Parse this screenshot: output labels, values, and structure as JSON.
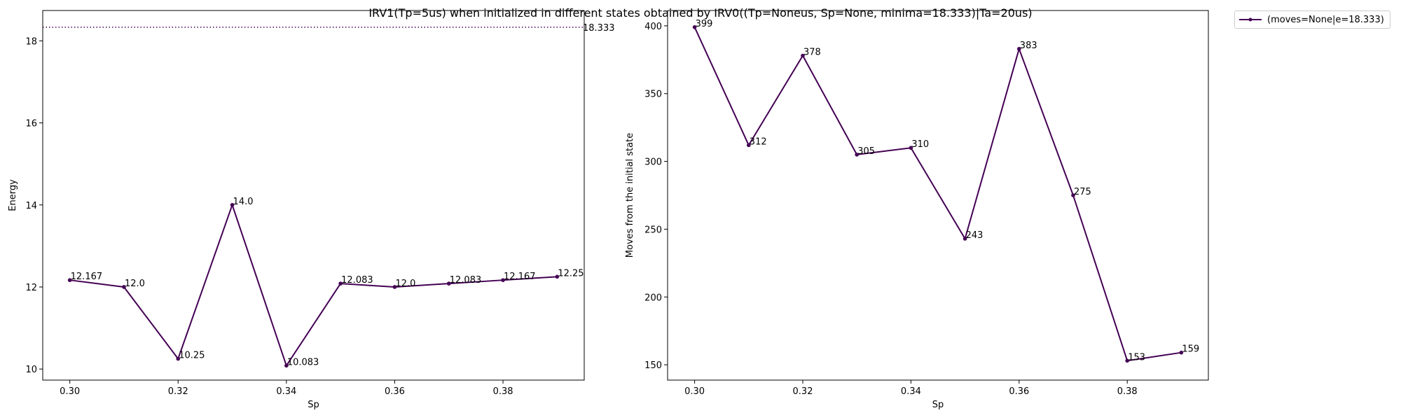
{
  "figure": {
    "title": "IRV1(Tp=5us) when initialized in different states obtained by IRV0((Tp=Noneus, Sp=None, minima=18.333)|Ta=20us)",
    "line_color": "#440154"
  },
  "legend": {
    "placement": "upper right, outside plot",
    "label": "(moves=None|e=18.333)"
  },
  "chart_data": [
    {
      "type": "line",
      "xlabel": "Sp",
      "ylabel": "Energy",
      "xlim": [
        0.295,
        0.395
      ],
      "ylim": [
        9.73,
        18.74
      ],
      "xticks": [
        0.3,
        0.32,
        0.34,
        0.36,
        0.38
      ],
      "xtick_labels": [
        "0.30",
        "0.32",
        "0.34",
        "0.36",
        "0.38"
      ],
      "yticks": [
        10,
        12,
        14,
        16,
        18
      ],
      "ytick_labels": [
        "10",
        "12",
        "14",
        "16",
        "18"
      ],
      "grid": false,
      "x": [
        0.3,
        0.31,
        0.32,
        0.33,
        0.34,
        0.35,
        0.36,
        0.37,
        0.38,
        0.39
      ],
      "values": [
        12.167,
        12.0,
        10.25,
        14.0,
        10.083,
        12.083,
        12.0,
        12.083,
        12.167,
        12.25
      ],
      "point_labels": [
        "12.167",
        "12.0",
        "10.25",
        "14.0",
        "10.083",
        "12.083",
        "12.0",
        "12.083",
        "12.167",
        "12.25"
      ],
      "reference_line": {
        "value": 18.333,
        "label": "18.333",
        "style": "dotted"
      }
    },
    {
      "type": "line",
      "xlabel": "Sp",
      "ylabel": "Moves from the initial state",
      "xlim": [
        0.295,
        0.395
      ],
      "ylim": [
        138.7,
        411.3
      ],
      "xticks": [
        0.3,
        0.32,
        0.34,
        0.36,
        0.38
      ],
      "xtick_labels": [
        "0.30",
        "0.32",
        "0.34",
        "0.36",
        "0.38"
      ],
      "yticks": [
        150,
        200,
        250,
        300,
        350,
        400
      ],
      "ytick_labels": [
        "150",
        "200",
        "250",
        "300",
        "350",
        "400"
      ],
      "grid": false,
      "x": [
        0.3,
        0.31,
        0.32,
        0.33,
        0.34,
        0.35,
        0.36,
        0.37,
        0.38,
        0.39
      ],
      "values": [
        399,
        312,
        378,
        305,
        310,
        243,
        383,
        275,
        153,
        159
      ],
      "point_labels": [
        "399",
        "312",
        "378",
        "305",
        "310",
        "243",
        "383",
        "275",
        "153",
        "159"
      ]
    }
  ]
}
